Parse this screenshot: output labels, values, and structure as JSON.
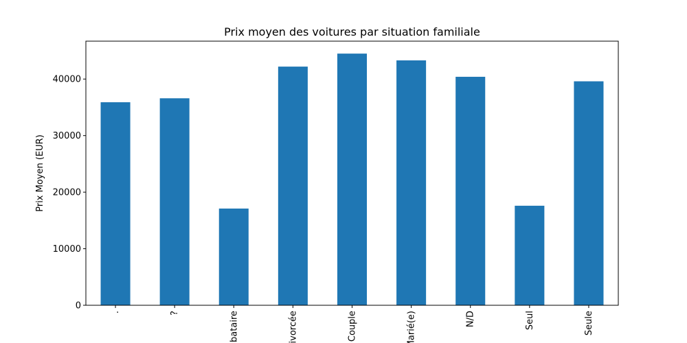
{
  "chart_data": {
    "type": "bar",
    "title": "Prix moyen des voitures par situation familiale",
    "xlabel": "",
    "ylabel": "Prix Moyen (EUR)",
    "categories": [
      ".",
      "?",
      "Célibataire",
      "Divorcée",
      "En Couple",
      "Marié(e)",
      "N/D",
      "Seul",
      "Seule"
    ],
    "values": [
      35900,
      36600,
      17100,
      42200,
      44500,
      43300,
      40400,
      17600,
      39600
    ],
    "ylim": [
      0,
      46700
    ],
    "yticks": [
      0,
      10000,
      20000,
      30000,
      40000
    ],
    "grid": false,
    "legend": "none",
    "bar_color": "#1f77b4"
  }
}
